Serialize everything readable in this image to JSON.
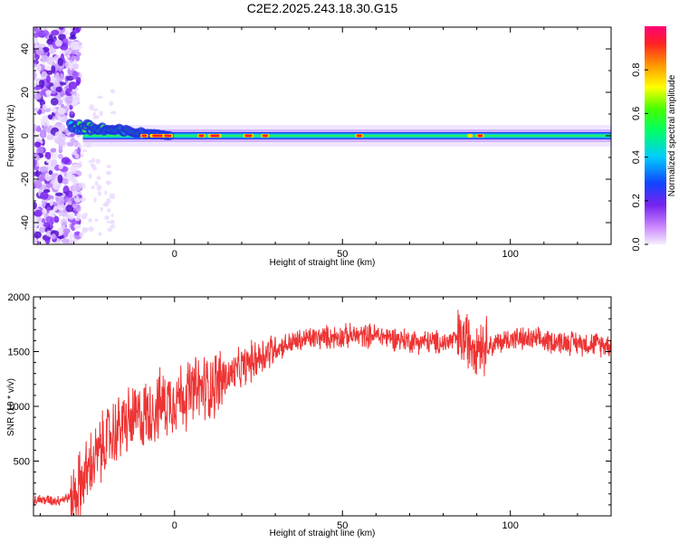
{
  "title": "C2E2.2025.243.18.30.G15",
  "chart_data": [
    {
      "type": "heatmap",
      "xlabel": "Height of straight line (km)",
      "ylabel": "Frequency (Hz)",
      "xlim": [
        -42,
        130
      ],
      "ylim": [
        -50,
        50
      ],
      "xticks": [
        0,
        50,
        100
      ],
      "yticks": [
        -40,
        -20,
        0,
        20,
        40
      ],
      "colorbar": {
        "label": "Normalized spectral amplitude",
        "range": [
          0,
          1
        ],
        "ticks": [
          "0.0",
          "0.2",
          "0.4",
          "0.6",
          "0.8"
        ],
        "colormap": "rainbow (white-violet to red)"
      },
      "noise_region_x": [
        -42,
        -30
      ],
      "signal_band": {
        "center_hz": 0,
        "description": "narrow band near 0 Hz from about -30 km to 130 km, wider (±10 Hz) near -30 km"
      }
    },
    {
      "type": "line",
      "xlabel": "Height of straight line (km)",
      "ylabel": "SNR (10 * v/v)",
      "xlim": [
        -42,
        130
      ],
      "ylim": [
        0,
        2000
      ],
      "xticks": [
        0,
        50,
        100
      ],
      "yticks": [
        500,
        1000,
        1500,
        2000
      ],
      "color": "#ee3333",
      "x": [
        -42,
        -35,
        -30,
        -25,
        -20,
        -15,
        -10,
        -5,
        0,
        5,
        10,
        15,
        20,
        25,
        30,
        35,
        40,
        50,
        60,
        70,
        80,
        85,
        90,
        95,
        100,
        110,
        120,
        130
      ],
      "y": [
        150,
        140,
        180,
        450,
        700,
        850,
        900,
        1000,
        1080,
        1130,
        1180,
        1250,
        1350,
        1450,
        1530,
        1580,
        1620,
        1640,
        1650,
        1600,
        1580,
        1620,
        1580,
        1560,
        1620,
        1600,
        1580,
        1560
      ]
    }
  ]
}
